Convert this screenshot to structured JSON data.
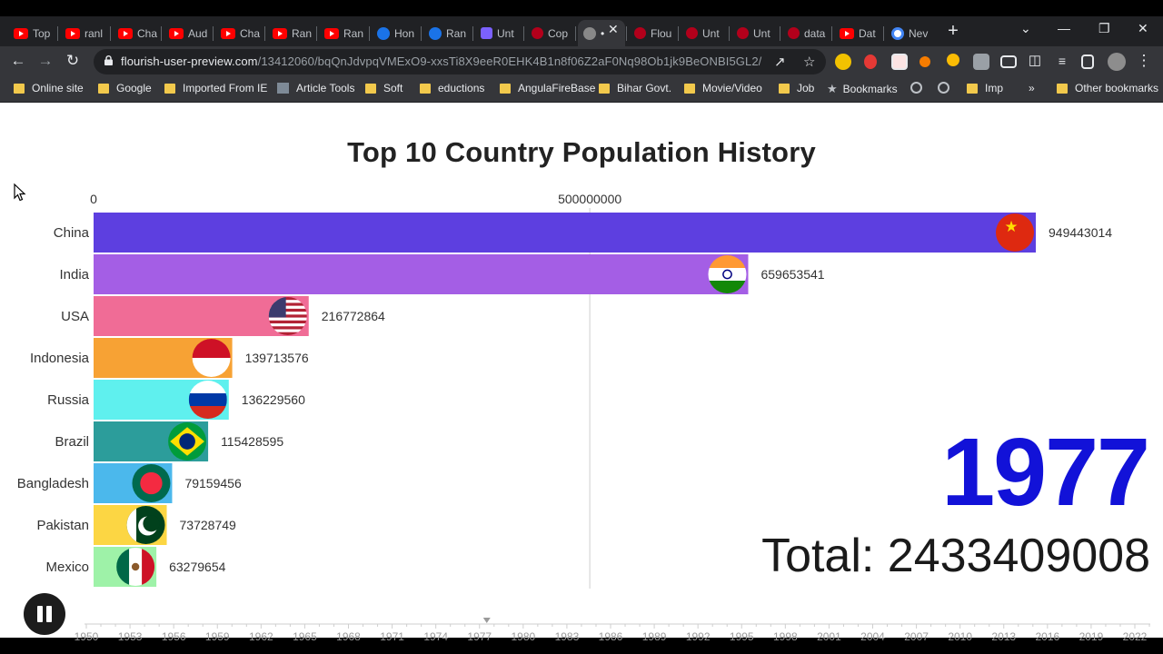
{
  "browser": {
    "tabs": [
      {
        "label": "Top",
        "favicon": "youtube-icon"
      },
      {
        "label": "ranl",
        "favicon": "youtube-icon"
      },
      {
        "label": "Cha",
        "favicon": "youtube-icon"
      },
      {
        "label": "Aud",
        "favicon": "youtube-icon"
      },
      {
        "label": "Cha",
        "favicon": "youtube-icon"
      },
      {
        "label": "Ran",
        "favicon": "youtube-icon"
      },
      {
        "label": "Ran",
        "favicon": "youtube-icon"
      },
      {
        "label": "Hon",
        "favicon": "blue-circle-icon"
      },
      {
        "label": "Ran",
        "favicon": "blue-circle-icon"
      },
      {
        "label": "Unt",
        "favicon": "purple-square-icon"
      },
      {
        "label": "Cop",
        "favicon": "flourish-icon"
      },
      {
        "label": "•",
        "favicon": "globe-icon",
        "active": true
      },
      {
        "label": "Flou",
        "favicon": "flourish-icon"
      },
      {
        "label": "Unt",
        "favicon": "flourish-icon"
      },
      {
        "label": "Unt",
        "favicon": "flourish-icon"
      },
      {
        "label": "data",
        "favicon": "flourish-icon"
      },
      {
        "label": "Dat",
        "favicon": "youtube-icon"
      },
      {
        "label": "Nev",
        "favicon": "chrome-icon"
      }
    ],
    "url_host": "flourish-user-preview.com",
    "url_path": "/13412060/bqQnJdvpqVMExO9-xxsTi8X9eeR0EHK4B1n8f06Z2aF0Nq98Ob1jk9BeONBI5GL2/",
    "bookmarks": [
      {
        "label": "Online site",
        "icon": "folder"
      },
      {
        "label": "Google",
        "icon": "folder"
      },
      {
        "label": "Imported From IE",
        "icon": "folder"
      },
      {
        "label": "Article Tools",
        "icon": "image"
      },
      {
        "label": "Soft",
        "icon": "folder"
      },
      {
        "label": "eductions",
        "icon": "folder"
      },
      {
        "label": "AngulaFireBase",
        "icon": "folder"
      },
      {
        "label": "Bihar Govt.",
        "icon": "folder"
      },
      {
        "label": "Movie/Video",
        "icon": "folder"
      },
      {
        "label": "Job",
        "icon": "folder"
      },
      {
        "label": "Bookmarks",
        "icon": "star"
      },
      {
        "label": "",
        "icon": "globe"
      },
      {
        "label": "",
        "icon": "globe"
      },
      {
        "label": "Imp",
        "icon": "folder"
      },
      {
        "label": "»",
        "icon": "none"
      },
      {
        "label": "Other bookmarks",
        "icon": "folder"
      }
    ]
  },
  "chart_data": {
    "type": "bar",
    "title": "Top 10 Country Population History",
    "orientation": "horizontal",
    "axis_ticks": [
      "0",
      "500000000"
    ],
    "axis_tick_values": [
      0,
      500000000
    ],
    "xlim": [
      0,
      949443014
    ],
    "categories": [
      "China",
      "India",
      "USA",
      "Indonesia",
      "Russia",
      "Brazil",
      "Bangladesh",
      "Pakistan",
      "Mexico"
    ],
    "values": [
      949443014,
      659653541,
      216772864,
      139713576,
      136229560,
      115428595,
      79159456,
      73728749,
      63279654
    ],
    "value_labels": [
      "949443014",
      "659653541",
      "216772864",
      "139713576",
      "136229560",
      "115428595",
      "79159456",
      "73728749",
      "63279654"
    ],
    "colors": [
      "#5d3fe0",
      "#a45ee5",
      "#f06c96",
      "#f7a234",
      "#5ff0ee",
      "#2c9d9b",
      "#4bb8ec",
      "#fcd643",
      "#9ef2a8"
    ],
    "flags": [
      "china-flag-icon",
      "india-flag-icon",
      "usa-flag-icon",
      "indonesia-flag-icon",
      "russia-flag-icon",
      "brazil-flag-icon",
      "bangladesh-flag-icon",
      "pakistan-flag-icon",
      "mexico-flag-icon"
    ],
    "current_year": "1977",
    "total_label": "Total: 2433409008",
    "timeline_years": [
      "1950",
      "1953",
      "1956",
      "1959",
      "1962",
      "1965",
      "1968",
      "1971",
      "1974",
      "1977",
      "1980",
      "1983",
      "1986",
      "1989",
      "1992",
      "1995",
      "1998",
      "2001",
      "2004",
      "2007",
      "2010",
      "2013",
      "2016",
      "2019",
      "2022"
    ],
    "timeline_position_year": 1977
  },
  "controls": {
    "play_state": "playing",
    "pause_icon": "pause-icon"
  }
}
